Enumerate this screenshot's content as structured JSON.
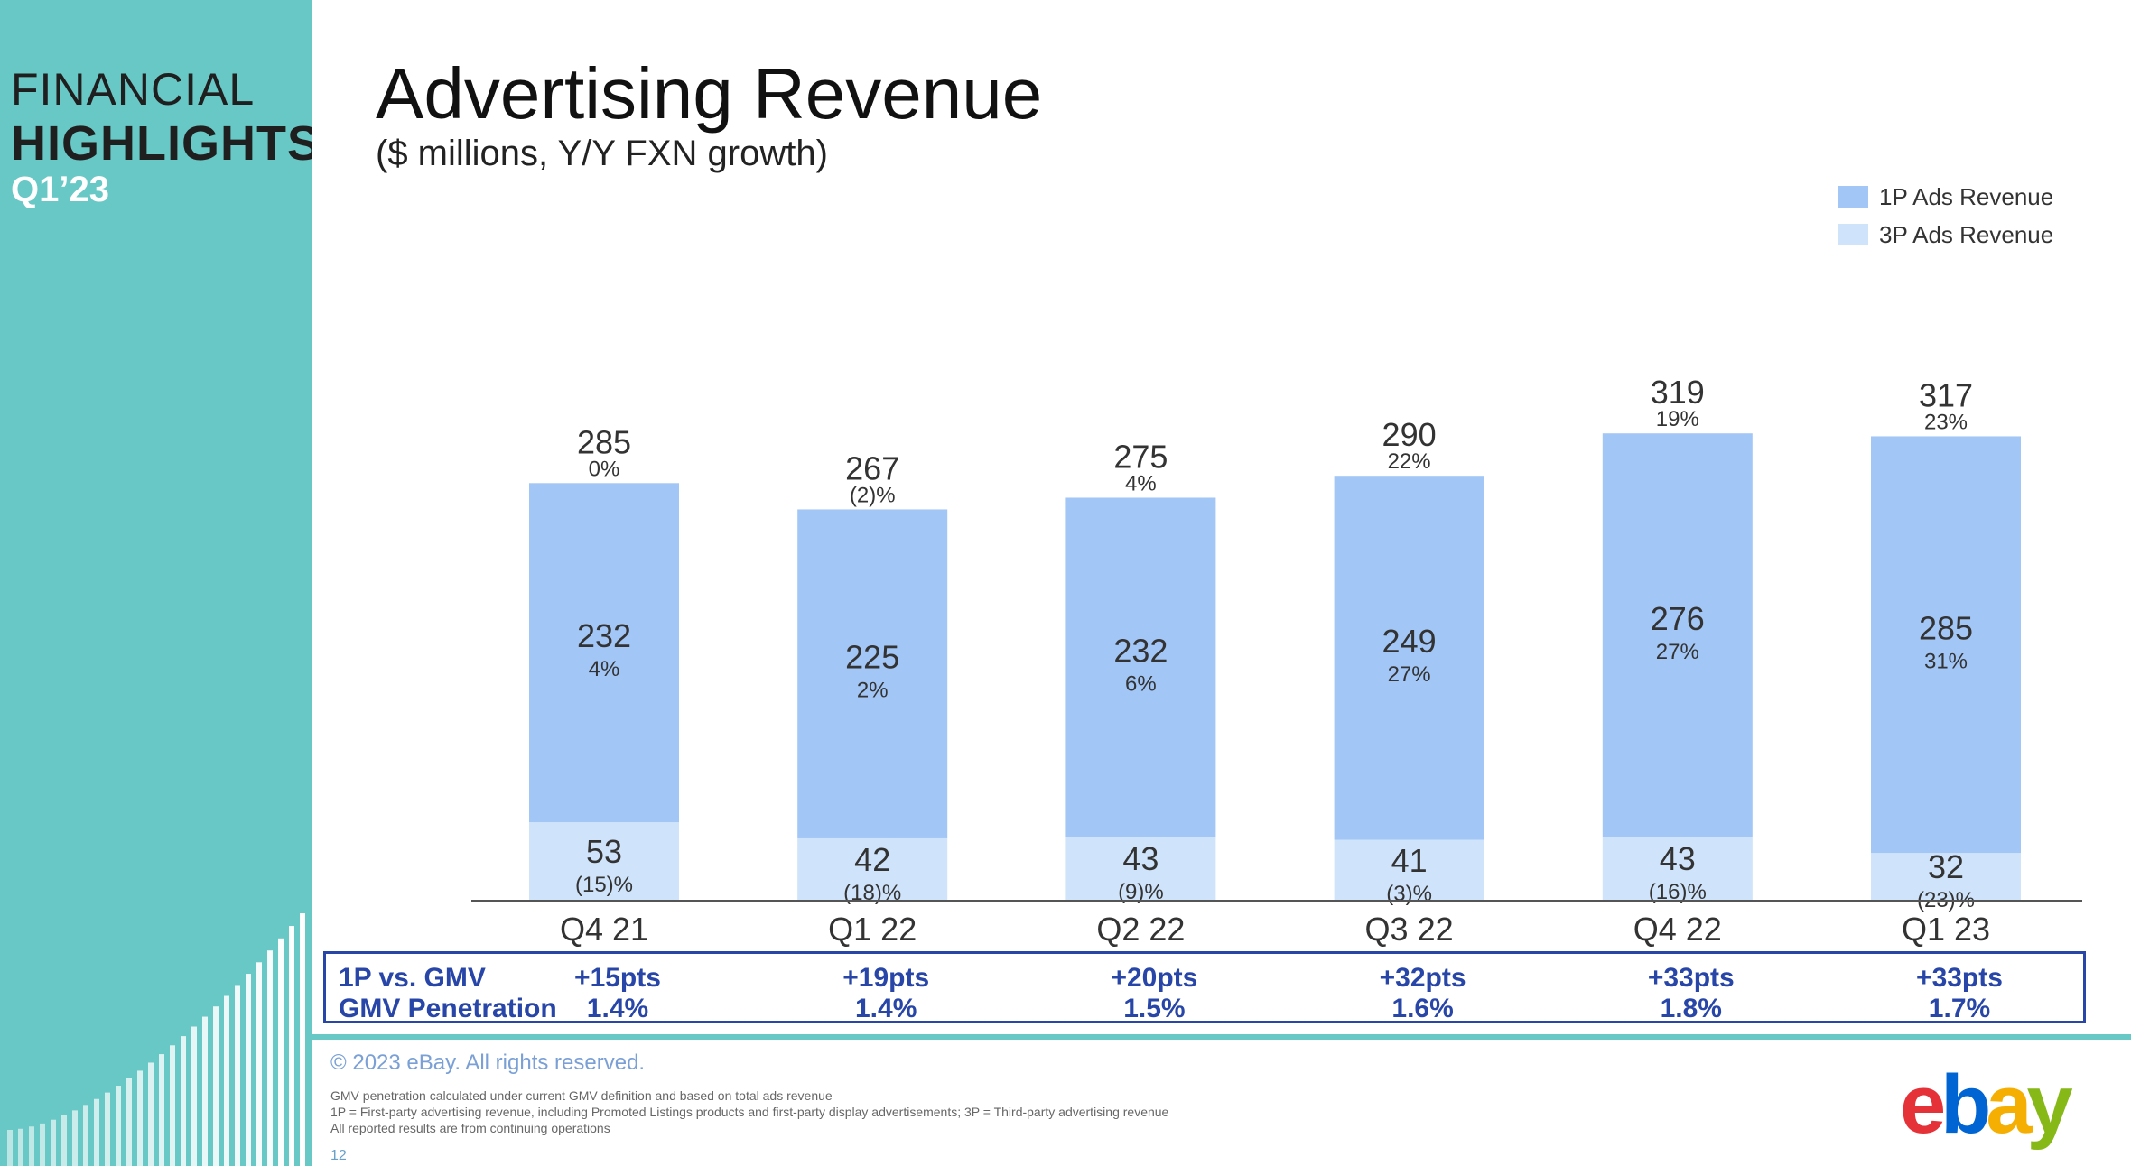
{
  "sidebar": {
    "line1": "FINANCIAL",
    "line2": "HIGHLIGHTS",
    "line3": "Q1’23"
  },
  "header": {
    "title": "Advertising Revenue",
    "subtitle": "($ millions, Y/Y FXN growth)"
  },
  "legend": [
    {
      "label": "1P Ads Revenue",
      "color": "#a2c6f6"
    },
    {
      "label": "3P Ads Revenue",
      "color": "#cfe3fa"
    }
  ],
  "chart_data": {
    "type": "bar",
    "stacked": true,
    "title": "Advertising Revenue",
    "subtitle": "($ millions, Y/Y FXN growth)",
    "categories": [
      "Q4 21",
      "Q1 22",
      "Q2 22",
      "Q3 22",
      "Q4 22",
      "Q1 23"
    ],
    "series": [
      {
        "name": "3P Ads Revenue",
        "color": "#cfe3fa",
        "values": [
          53,
          42,
          43,
          41,
          43,
          32
        ],
        "growth": [
          "(15)%",
          "(18)%",
          "(9)%",
          "(3)%",
          "(16)%",
          "(23)%"
        ]
      },
      {
        "name": "1P Ads Revenue",
        "color": "#a2c6f6",
        "values": [
          232,
          225,
          232,
          249,
          276,
          285
        ],
        "growth": [
          "4%",
          "2%",
          "6%",
          "27%",
          "27%",
          "31%"
        ]
      }
    ],
    "totals": [
      285,
      267,
      275,
      290,
      319,
      317
    ],
    "total_growth": [
      "0%",
      "(2)%",
      "4%",
      "22%",
      "19%",
      "23%"
    ],
    "legend_position": "top-right",
    "ylim": [
      0,
      330
    ],
    "grid": false
  },
  "metrics": {
    "row1_label": "1P vs. GMV",
    "row2_label": "GMV Penetration",
    "row1": [
      "+15pts",
      "+19pts",
      "+20pts",
      "+32pts",
      "+33pts",
      "+33pts"
    ],
    "row2": [
      "1.4%",
      "1.4%",
      "1.5%",
      "1.6%",
      "1.8%",
      "1.7%"
    ]
  },
  "footer": {
    "copyright": "© 2023 eBay. All rights reserved.",
    "notes": [
      "GMV penetration calculated under current GMV definition and based on total ads revenue",
      "1P = First-party advertising revenue, including Promoted Listings products and first-party display advertisements; 3P = Third-party advertising revenue",
      "All reported results are from continuing operations"
    ],
    "page_number": "12"
  },
  "logo": {
    "letters": [
      "e",
      "b",
      "a",
      "y"
    ],
    "colors": [
      "#e53238",
      "#0064d2",
      "#f5af02",
      "#86b817"
    ]
  }
}
